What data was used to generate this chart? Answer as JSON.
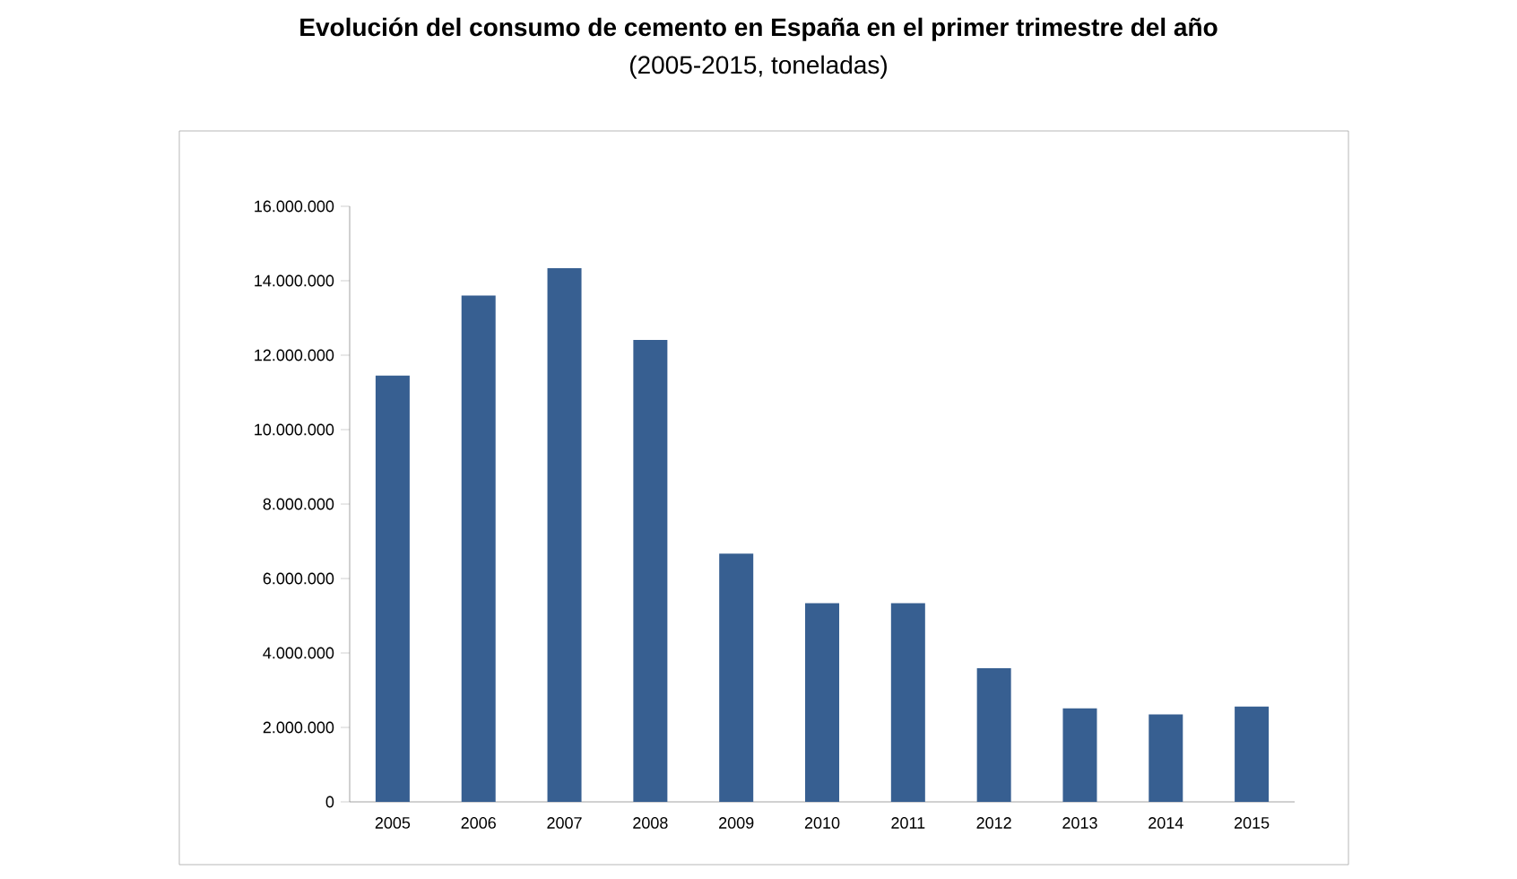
{
  "chart_data": {
    "type": "bar",
    "title": "Evolución del consumo de cemento en España en el primer trimestre del año",
    "subtitle": "(2005-2015, toneladas)",
    "categories": [
      "2005",
      "2006",
      "2007",
      "2008",
      "2009",
      "2010",
      "2011",
      "2012",
      "2013",
      "2014",
      "2015"
    ],
    "values": [
      11450000,
      13600000,
      14340000,
      12410000,
      6670000,
      5340000,
      5340000,
      3590000,
      2510000,
      2350000,
      2560000
    ],
    "color": "#375f91",
    "ylim": [
      0,
      16000000
    ],
    "yticks": [
      0,
      {
        "value": 2000000,
        "label": "2.000.000"
      },
      {
        "value": 4000000,
        "label": "4.000.000"
      },
      {
        "value": 6000000,
        "label": "6.000.000"
      },
      {
        "value": 8000000,
        "label": "8.000.000"
      },
      {
        "value": 10000000,
        "label": "10.000.000"
      },
      {
        "value": 12000000,
        "label": "12.000.000"
      },
      {
        "value": 14000000,
        "label": "14.000.000"
      },
      {
        "value": 16000000,
        "label": "16.000.000"
      }
    ],
    "grid": false
  }
}
